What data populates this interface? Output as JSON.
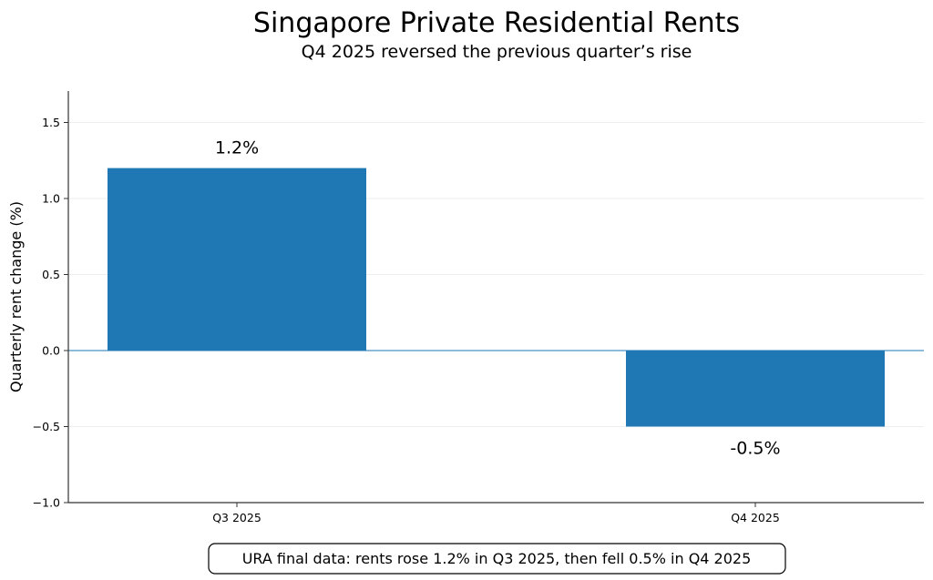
{
  "chart_data": {
    "type": "bar",
    "title": "Singapore Private Residential Rents",
    "subtitle": "Q4 2025 reversed the previous quarter’s rise",
    "xlabel": "",
    "ylabel": "Quarterly rent change (%)",
    "categories": [
      "Q3 2025",
      "Q4 2025"
    ],
    "values": [
      1.2,
      -0.5
    ],
    "data_labels": [
      "1.2%",
      "-0.5%"
    ],
    "ylim": [
      -1.0,
      1.7
    ],
    "yticks": [
      -1.0,
      -0.5,
      0.0,
      0.5,
      1.0,
      1.5
    ],
    "ytick_labels": [
      "−1.0",
      "−0.5",
      "0.0",
      "0.5",
      "1.0",
      "1.5"
    ],
    "grid": "horizontal, faint",
    "zero_line": true,
    "bar_color": "#1f77b4",
    "annotation": "URA final data: rents rose 1.2% in Q3 2025, then fell 0.5% in Q4 2025"
  }
}
